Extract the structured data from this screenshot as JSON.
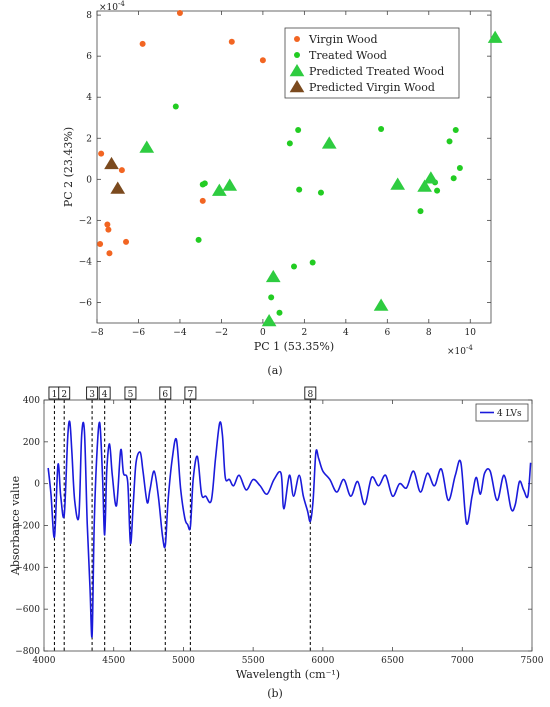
{
  "chart_data": [
    {
      "type": "scatter",
      "panel_label": "(a)",
      "xlabel": "PC 1 (53.35%)",
      "ylabel": "PC 2 (23.43%)",
      "x_exponent_label": "×10",
      "x_exponent": "-4",
      "y_exponent_label": "×10",
      "y_exponent": "-4",
      "xlim": [
        -8,
        11
      ],
      "ylim": [
        -7,
        8.2
      ],
      "xticks": [
        -8,
        -6,
        -4,
        -2,
        0,
        2,
        4,
        6,
        8,
        10
      ],
      "yticks": [
        -6,
        -4,
        -2,
        0,
        2,
        4,
        6,
        8
      ],
      "legend_position": "top-right",
      "series": [
        {
          "name": "Virgin Wood",
          "marker": "circle",
          "color": "#f26522",
          "points": [
            [
              -4,
              8.1
            ],
            [
              -5.8,
              6.6
            ],
            [
              -1.5,
              6.7
            ],
            [
              0,
              5.8
            ],
            [
              -7.8,
              1.25
            ],
            [
              -6.8,
              0.45
            ],
            [
              -7.5,
              -2.2
            ],
            [
              -7.45,
              -2.45
            ],
            [
              -7.85,
              -3.15
            ],
            [
              -6.6,
              -3.05
            ],
            [
              -7.4,
              -3.6
            ],
            [
              -2.9,
              -1.05
            ]
          ]
        },
        {
          "name": "Treated Wood",
          "marker": "circle",
          "color": "#22cc22",
          "points": [
            [
              -4.2,
              3.55
            ],
            [
              -2.9,
              -0.25
            ],
            [
              -2.8,
              -0.2
            ],
            [
              -3.1,
              -2.95
            ],
            [
              1.3,
              1.75
            ],
            [
              1.7,
              2.4
            ],
            [
              1.75,
              -0.5
            ],
            [
              2.8,
              -0.65
            ],
            [
              5.7,
              2.45
            ],
            [
              9.3,
              2.4
            ],
            [
              9.0,
              1.85
            ],
            [
              9.5,
              0.55
            ],
            [
              9.2,
              0.05
            ],
            [
              8.3,
              -0.15
            ],
            [
              8.4,
              -0.55
            ],
            [
              7.6,
              -1.55
            ],
            [
              1.5,
              -4.25
            ],
            [
              2.4,
              -4.05
            ],
            [
              0.4,
              -5.75
            ],
            [
              0.8,
              -6.5
            ]
          ]
        },
        {
          "name": "Predicted Treated Wood",
          "marker": "triangle",
          "color": "#2ecc40",
          "points": [
            [
              11.2,
              6.9
            ],
            [
              -5.6,
              1.55
            ],
            [
              -2.1,
              -0.55
            ],
            [
              -1.6,
              -0.3
            ],
            [
              3.2,
              1.75
            ],
            [
              6.5,
              -0.25
            ],
            [
              8.1,
              0.05
            ],
            [
              7.8,
              -0.35
            ],
            [
              5.7,
              -6.15
            ],
            [
              0.5,
              -4.75
            ],
            [
              0.3,
              -6.9
            ]
          ]
        },
        {
          "name": "Predicted Virgin Wood",
          "marker": "triangle",
          "color": "#7b4a1e",
          "points": [
            [
              -7.3,
              0.75
            ],
            [
              -7.0,
              -0.45
            ]
          ]
        }
      ]
    },
    {
      "type": "line",
      "panel_label": "(b)",
      "xlabel": "Wavelength (cm⁻¹)",
      "ylabel": "Absorbance value",
      "xlim": [
        4000,
        7500
      ],
      "ylim": [
        -800,
        400
      ],
      "xticks": [
        4000,
        4500,
        5000,
        5500,
        6000,
        6500,
        7000,
        7500
      ],
      "yticks": [
        -800,
        -600,
        -400,
        -200,
        0,
        200,
        400
      ],
      "legend_position": "top-right",
      "markers": [
        {
          "label": "1",
          "x": 4075
        },
        {
          "label": "2",
          "x": 4145
        },
        {
          "label": "3",
          "x": 4345
        },
        {
          "label": "4",
          "x": 4435
        },
        {
          "label": "5",
          "x": 4620
        },
        {
          "label": "6",
          "x": 4870
        },
        {
          "label": "7",
          "x": 5050
        },
        {
          "label": "8",
          "x": 5910
        }
      ],
      "series": [
        {
          "name": "4 LVs",
          "color": "#1a1adb",
          "x": [
            4030,
            4050,
            4075,
            4100,
            4120,
            4145,
            4170,
            4185,
            4200,
            4220,
            4250,
            4270,
            4290,
            4310,
            4330,
            4345,
            4360,
            4380,
            4400,
            4420,
            4435,
            4450,
            4470,
            4490,
            4520,
            4550,
            4570,
            4600,
            4620,
            4640,
            4660,
            4690,
            4710,
            4740,
            4760,
            4790,
            4820,
            4850,
            4870,
            4890,
            4920,
            4950,
            4980,
            5010,
            5030,
            5050,
            5070,
            5100,
            5130,
            5160,
            5200,
            5230,
            5260,
            5280,
            5300,
            5330,
            5360,
            5400,
            5450,
            5500,
            5550,
            5600,
            5650,
            5700,
            5720,
            5760,
            5790,
            5830,
            5860,
            5890,
            5910,
            5930,
            5950,
            5970,
            6000,
            6050,
            6100,
            6150,
            6200,
            6250,
            6300,
            6350,
            6400,
            6450,
            6500,
            6550,
            6600,
            6650,
            6700,
            6750,
            6800,
            6850,
            6900,
            6950,
            6990,
            7030,
            7070,
            7100,
            7130,
            7160,
            7200,
            7250,
            7300,
            7350,
            7380,
            7410,
            7440,
            7470,
            7490
          ],
          "y": [
            75,
            -50,
            -255,
            90,
            -60,
            -150,
            220,
            295,
            150,
            -80,
            -155,
            230,
            250,
            -190,
            -500,
            -725,
            -200,
            150,
            290,
            30,
            -245,
            60,
            190,
            40,
            -105,
            160,
            50,
            10,
            -285,
            -100,
            100,
            150,
            60,
            -90,
            -30,
            60,
            -60,
            -250,
            -295,
            -80,
            120,
            210,
            -25,
            -165,
            -195,
            -205,
            20,
            130,
            -50,
            -60,
            -80,
            120,
            290,
            230,
            30,
            20,
            -10,
            40,
            -30,
            20,
            -10,
            -50,
            20,
            50,
            -120,
            40,
            -60,
            40,
            -60,
            -130,
            -180,
            -80,
            150,
            120,
            60,
            20,
            -40,
            20,
            -60,
            10,
            -100,
            30,
            -10,
            40,
            -60,
            0,
            -20,
            60,
            -40,
            50,
            -10,
            70,
            -80,
            40,
            100,
            -190,
            -60,
            30,
            -50,
            50,
            60,
            -80,
            40,
            -120,
            -100,
            10,
            -30,
            -60,
            100
          ]
        }
      ]
    }
  ]
}
